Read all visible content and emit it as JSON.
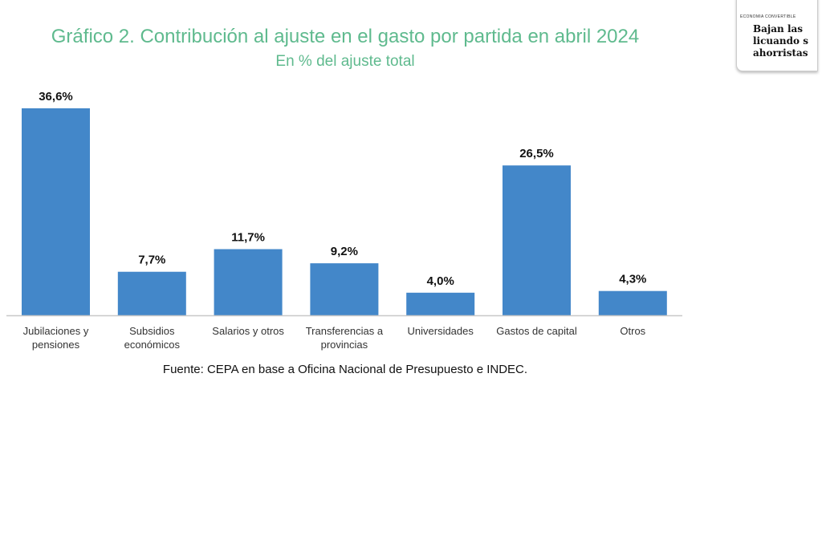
{
  "chart_data": {
    "type": "bar",
    "title": "Gráfico 2. Contribución al ajuste en el gasto por partida en abril 2024",
    "subtitle": "En % del ajuste total",
    "categories": [
      [
        "Jubilaciones y",
        "pensiones"
      ],
      [
        "Subsidios",
        "económicos"
      ],
      [
        "Salarios y otros"
      ],
      [
        "Transferencias a",
        "provincias"
      ],
      [
        "Universidades"
      ],
      [
        "Gastos de capital"
      ],
      [
        "Otros"
      ]
    ],
    "values": [
      36.6,
      7.7,
      11.7,
      9.2,
      4.0,
      26.5,
      4.3
    ],
    "data_labels": [
      "36,6%",
      "7,7%",
      "11,7%",
      "9,2%",
      "4,0%",
      "26,5%",
      "4,3%"
    ],
    "ylim": [
      0,
      36.6
    ],
    "grid": false,
    "bar_color": "#4387c9",
    "source": "Fuente: CEPA en base a Oficina Nacional de Presupuesto e INDEC."
  },
  "inset": {
    "kicker": "ECONOMIA CONVERTIBLE",
    "headline": [
      "Bajan las",
      "licuando s",
      "ahorristas"
    ]
  }
}
